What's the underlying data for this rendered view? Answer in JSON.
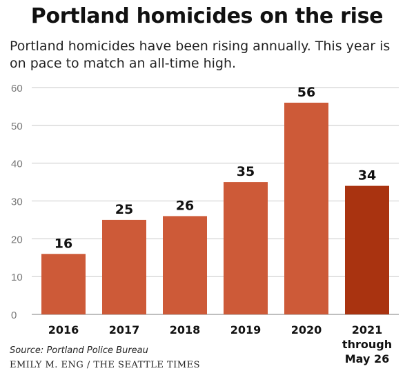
{
  "title": "Portland homicides on the rise",
  "subtitle": "Portland homicides have been rising annually. This year is on pace to match an all-time high.",
  "source": "Source: Portland Police Bureau",
  "credit": "EMILY M. ENG / THE SEATTLE TIMES",
  "colors": {
    "bar": "#cd5a38",
    "highlight_bar": "#a93310",
    "grid": "#c8c8c8",
    "axis_text": "#777777",
    "label_text": "#111111"
  },
  "chart_data": {
    "type": "bar",
    "categories": [
      "2016",
      "2017",
      "2018",
      "2019",
      "2020",
      "2021\nthrough\nMay 26"
    ],
    "values": [
      16,
      25,
      26,
      35,
      56,
      34
    ],
    "highlight_index": 5,
    "ylim": [
      0,
      60
    ],
    "yticks": [
      0,
      10,
      20,
      30,
      40,
      50,
      60
    ],
    "grid": true,
    "data_labels": true,
    "xlabel": "",
    "ylabel": ""
  }
}
